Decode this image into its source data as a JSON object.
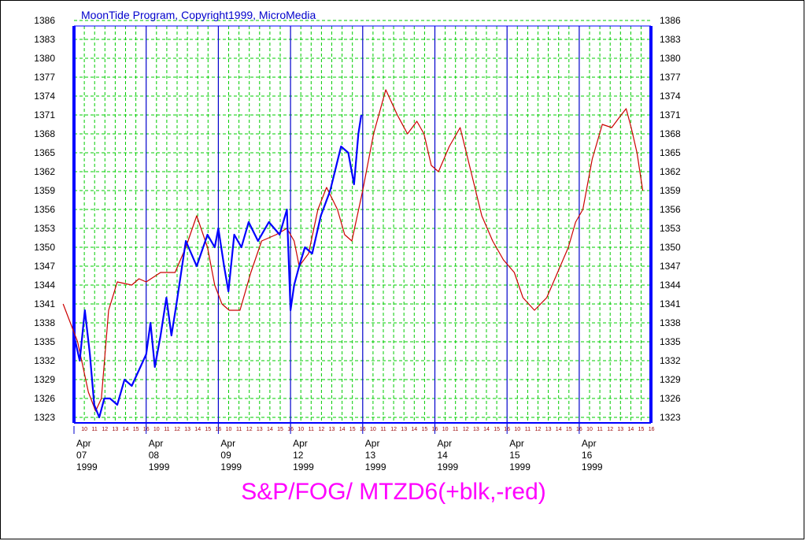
{
  "header": {
    "copyright": "MoonTide Program, Copyright1999, MicroMedia"
  },
  "footer": {
    "title": "S&P/FOG/ MTZD6(+blk,-red)"
  },
  "colors": {
    "grid": "#00cc00",
    "frame": "#0000ff",
    "day_lines": "#0000cc",
    "price": "#0000ff",
    "forecast": "#cc0000",
    "title": "#ff00ff",
    "copyright": "#0000cc",
    "hour_ticks": "#990000"
  },
  "chart_data": {
    "type": "line",
    "title": "S&P/FOG/ MTZD6(+blk,-red)",
    "ylim": [
      1323,
      1386
    ],
    "y_ticks": [
      "1386",
      "1383",
      "1380",
      "1377",
      "1374",
      "1371",
      "1368",
      "1365",
      "1362",
      "1359",
      "1356",
      "1353",
      "1350",
      "1347",
      "1344",
      "1341",
      "1338",
      "1335",
      "1332",
      "1329",
      "1326",
      "1323"
    ],
    "grid": true,
    "x_unit": "session-day index (0 = Apr 07 1999 open)",
    "days": [
      {
        "month": "Apr",
        "day": "07",
        "year": "1999"
      },
      {
        "month": "Apr",
        "day": "08",
        "year": "1999"
      },
      {
        "month": "Apr",
        "day": "09",
        "year": "1999"
      },
      {
        "month": "Apr",
        "day": "12",
        "year": "1999"
      },
      {
        "month": "Apr",
        "day": "13",
        "year": "1999"
      },
      {
        "month": "Apr",
        "day": "14",
        "year": "1999"
      },
      {
        "month": "Apr",
        "day": "15",
        "year": "1999"
      },
      {
        "month": "Apr",
        "day": "16",
        "year": "1999"
      }
    ],
    "hour_labels": [
      "10",
      "11",
      "12",
      "13",
      "14",
      "15",
      "16"
    ],
    "series": [
      {
        "name": "+blk",
        "points": [
          [
            0.0,
            1336
          ],
          [
            0.08,
            1332
          ],
          [
            0.15,
            1340
          ],
          [
            0.22,
            1333
          ],
          [
            0.28,
            1325
          ],
          [
            0.35,
            1323
          ],
          [
            0.42,
            1326
          ],
          [
            0.5,
            1326
          ],
          [
            0.6,
            1325
          ],
          [
            0.7,
            1329
          ],
          [
            0.8,
            1328
          ],
          [
            1.0,
            1333
          ],
          [
            1.06,
            1338
          ],
          [
            1.12,
            1331
          ],
          [
            1.2,
            1336
          ],
          [
            1.28,
            1342
          ],
          [
            1.35,
            1336
          ],
          [
            1.42,
            1341
          ],
          [
            1.55,
            1351
          ],
          [
            1.7,
            1347
          ],
          [
            1.85,
            1352
          ],
          [
            1.95,
            1350
          ],
          [
            2.0,
            1353
          ],
          [
            2.08,
            1347
          ],
          [
            2.14,
            1343
          ],
          [
            2.22,
            1352
          ],
          [
            2.32,
            1350
          ],
          [
            2.42,
            1354
          ],
          [
            2.55,
            1351
          ],
          [
            2.7,
            1354
          ],
          [
            2.85,
            1352
          ],
          [
            2.95,
            1356
          ],
          [
            3.0,
            1340
          ],
          [
            3.05,
            1344
          ],
          [
            3.12,
            1347
          ],
          [
            3.2,
            1350
          ],
          [
            3.3,
            1349
          ],
          [
            3.42,
            1355
          ],
          [
            3.55,
            1359
          ],
          [
            3.7,
            1366
          ],
          [
            3.8,
            1365
          ],
          [
            3.88,
            1360
          ],
          [
            3.94,
            1368
          ],
          [
            3.98,
            1371
          ]
        ]
      },
      {
        "name": "-red",
        "points": [
          [
            -0.15,
            1341
          ],
          [
            0.05,
            1335
          ],
          [
            0.2,
            1327
          ],
          [
            0.3,
            1324
          ],
          [
            0.38,
            1326
          ],
          [
            0.48,
            1340
          ],
          [
            0.6,
            1344.5
          ],
          [
            0.8,
            1344
          ],
          [
            0.9,
            1345
          ],
          [
            1.0,
            1344.5
          ],
          [
            1.2,
            1346
          ],
          [
            1.4,
            1346
          ],
          [
            1.55,
            1350
          ],
          [
            1.7,
            1355
          ],
          [
            1.85,
            1350
          ],
          [
            1.95,
            1344
          ],
          [
            2.05,
            1341
          ],
          [
            2.15,
            1340
          ],
          [
            2.3,
            1340
          ],
          [
            2.45,
            1346
          ],
          [
            2.6,
            1351
          ],
          [
            2.8,
            1352
          ],
          [
            2.95,
            1353
          ],
          [
            3.05,
            1351
          ],
          [
            3.12,
            1347
          ],
          [
            3.25,
            1349
          ],
          [
            3.38,
            1356
          ],
          [
            3.5,
            1359.5
          ],
          [
            3.65,
            1356
          ],
          [
            3.75,
            1352
          ],
          [
            3.85,
            1351
          ],
          [
            4.0,
            1359
          ],
          [
            4.15,
            1368
          ],
          [
            4.32,
            1375
          ],
          [
            4.48,
            1371
          ],
          [
            4.62,
            1368
          ],
          [
            4.75,
            1370
          ],
          [
            4.85,
            1368
          ],
          [
            4.95,
            1363
          ],
          [
            5.05,
            1362
          ],
          [
            5.2,
            1366
          ],
          [
            5.35,
            1369
          ],
          [
            5.5,
            1362
          ],
          [
            5.65,
            1355
          ],
          [
            5.8,
            1351
          ],
          [
            5.95,
            1348
          ],
          [
            6.1,
            1346
          ],
          [
            6.22,
            1342
          ],
          [
            6.38,
            1340
          ],
          [
            6.55,
            1342
          ],
          [
            6.7,
            1346
          ],
          [
            6.85,
            1350
          ],
          [
            6.95,
            1354
          ],
          [
            7.05,
            1356
          ],
          [
            7.18,
            1364
          ],
          [
            7.32,
            1369.5
          ],
          [
            7.45,
            1369
          ],
          [
            7.58,
            1371
          ],
          [
            7.65,
            1372
          ],
          [
            7.72,
            1369
          ],
          [
            7.8,
            1365
          ],
          [
            7.88,
            1359
          ]
        ]
      }
    ]
  }
}
